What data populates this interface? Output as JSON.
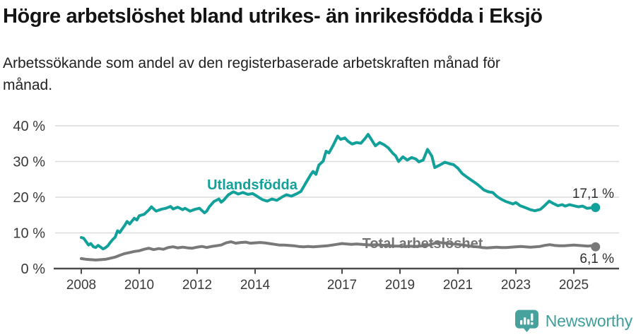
{
  "header": {
    "title": "Högre arbetslöshet bland utrikes- än inrikesfödda i Eksjö",
    "subtitle_lines": [
      "Arbetssökande som andel av den registerbaserade arbetskraften månad för",
      "månad."
    ]
  },
  "footer": {
    "brand": "Newsworthy"
  },
  "colors": {
    "foreign_born": "#12a19a",
    "total": "#797979",
    "grid": "#dcdcdc",
    "axis": "#4a4a4a",
    "tick_label": "#3a3a3a",
    "value_label": "#2e2e2e",
    "logo": "#47a29d",
    "wordmark": "#3f9e99"
  },
  "chart_data": {
    "type": "line",
    "title": "Högre arbetslöshet bland utrikes- än inrikesfödda i Eksjö",
    "subtitle": "Arbetssökande som andel av den registerbaserade arbetskraften månad för månad.",
    "grid": "horizontal",
    "legend_position": "inline-labels",
    "x_axis": {
      "range": [
        2007.1,
        2026.6
      ],
      "ticks": [
        {
          "value": 2008,
          "label": "2008"
        },
        {
          "value": 2010,
          "label": "2010"
        },
        {
          "value": 2012,
          "label": "2012"
        },
        {
          "value": 2014,
          "label": "2014"
        },
        {
          "value": 2017,
          "label": "2017"
        },
        {
          "value": 2019,
          "label": "2019"
        },
        {
          "value": 2021,
          "label": "2021"
        },
        {
          "value": 2023,
          "label": "2023"
        },
        {
          "value": 2025,
          "label": "2025"
        }
      ]
    },
    "y_axis": {
      "range": [
        0,
        40
      ],
      "unit": "%",
      "ticks": [
        {
          "value": 0,
          "label": "0 %"
        },
        {
          "value": 10,
          "label": "10 %"
        },
        {
          "value": 20,
          "label": "20 %"
        },
        {
          "value": 30,
          "label": "30 %"
        },
        {
          "value": 40,
          "label": "40 %"
        }
      ]
    },
    "series": [
      {
        "name": "Utlandsfödda",
        "color_key": "foreign_born",
        "end_label": "17,1 %",
        "end_value": 17.1,
        "points": [
          [
            2008.0,
            8.7
          ],
          [
            2008.08,
            8.5
          ],
          [
            2008.17,
            7.5
          ],
          [
            2008.25,
            6.6
          ],
          [
            2008.33,
            7.0
          ],
          [
            2008.42,
            6.1
          ],
          [
            2008.5,
            5.9
          ],
          [
            2008.58,
            6.5
          ],
          [
            2008.67,
            6.0
          ],
          [
            2008.75,
            5.5
          ],
          [
            2008.83,
            5.8
          ],
          [
            2008.92,
            6.4
          ],
          [
            2009.0,
            7.3
          ],
          [
            2009.08,
            8.1
          ],
          [
            2009.17,
            8.8
          ],
          [
            2009.25,
            10.6
          ],
          [
            2009.33,
            10.1
          ],
          [
            2009.42,
            11.2
          ],
          [
            2009.5,
            12.1
          ],
          [
            2009.58,
            13.2
          ],
          [
            2009.67,
            12.5
          ],
          [
            2009.75,
            13.3
          ],
          [
            2009.83,
            14.1
          ],
          [
            2009.92,
            13.6
          ],
          [
            2010.0,
            14.8
          ],
          [
            2010.17,
            15.2
          ],
          [
            2010.33,
            16.4
          ],
          [
            2010.42,
            17.3
          ],
          [
            2010.5,
            16.7
          ],
          [
            2010.58,
            16.1
          ],
          [
            2010.75,
            16.6
          ],
          [
            2010.92,
            16.9
          ],
          [
            2011.08,
            17.4
          ],
          [
            2011.17,
            16.7
          ],
          [
            2011.33,
            17.2
          ],
          [
            2011.5,
            16.5
          ],
          [
            2011.58,
            16.9
          ],
          [
            2011.75,
            16.1
          ],
          [
            2011.92,
            16.6
          ],
          [
            2012.08,
            16.9
          ],
          [
            2012.25,
            15.6
          ],
          [
            2012.33,
            16.1
          ],
          [
            2012.42,
            17.3
          ],
          [
            2012.58,
            18.8
          ],
          [
            2012.75,
            19.5
          ],
          [
            2012.83,
            18.6
          ],
          [
            2012.92,
            19.2
          ],
          [
            2013.08,
            20.7
          ],
          [
            2013.25,
            21.5
          ],
          [
            2013.42,
            20.9
          ],
          [
            2013.58,
            21.3
          ],
          [
            2013.75,
            20.8
          ],
          [
            2013.92,
            21.0
          ],
          [
            2014.08,
            20.2
          ],
          [
            2014.25,
            19.3
          ],
          [
            2014.42,
            18.9
          ],
          [
            2014.58,
            19.5
          ],
          [
            2014.75,
            19.1
          ],
          [
            2014.92,
            20.0
          ],
          [
            2015.08,
            20.7
          ],
          [
            2015.25,
            20.3
          ],
          [
            2015.42,
            20.9
          ],
          [
            2015.58,
            21.6
          ],
          [
            2015.75,
            24.0
          ],
          [
            2015.92,
            26.3
          ],
          [
            2016.0,
            27.2
          ],
          [
            2016.1,
            26.4
          ],
          [
            2016.2,
            29.0
          ],
          [
            2016.35,
            30.1
          ],
          [
            2016.45,
            32.9
          ],
          [
            2016.55,
            32.4
          ],
          [
            2016.7,
            34.6
          ],
          [
            2016.85,
            37.1
          ],
          [
            2016.95,
            36.2
          ],
          [
            2017.1,
            36.6
          ],
          [
            2017.2,
            35.7
          ],
          [
            2017.35,
            34.9
          ],
          [
            2017.5,
            35.3
          ],
          [
            2017.65,
            35.1
          ],
          [
            2017.8,
            36.5
          ],
          [
            2017.9,
            37.6
          ],
          [
            2018.05,
            35.7
          ],
          [
            2018.15,
            34.4
          ],
          [
            2018.3,
            35.3
          ],
          [
            2018.45,
            34.7
          ],
          [
            2018.6,
            33.8
          ],
          [
            2018.75,
            32.3
          ],
          [
            2018.85,
            31.6
          ],
          [
            2018.95,
            30.0
          ],
          [
            2019.1,
            31.3
          ],
          [
            2019.25,
            30.4
          ],
          [
            2019.4,
            31.1
          ],
          [
            2019.55,
            30.7
          ],
          [
            2019.65,
            29.9
          ],
          [
            2019.8,
            30.4
          ],
          [
            2019.95,
            33.4
          ],
          [
            2020.1,
            31.5
          ],
          [
            2020.2,
            28.3
          ],
          [
            2020.35,
            28.9
          ],
          [
            2020.55,
            29.8
          ],
          [
            2020.7,
            29.4
          ],
          [
            2020.85,
            29.1
          ],
          [
            2021.0,
            28.1
          ],
          [
            2021.15,
            26.6
          ],
          [
            2021.35,
            25.4
          ],
          [
            2021.55,
            24.3
          ],
          [
            2021.7,
            23.4
          ],
          [
            2021.9,
            22.0
          ],
          [
            2022.05,
            21.5
          ],
          [
            2022.2,
            21.3
          ],
          [
            2022.35,
            20.2
          ],
          [
            2022.5,
            19.4
          ],
          [
            2022.65,
            18.8
          ],
          [
            2022.8,
            18.4
          ],
          [
            2022.9,
            18.1
          ],
          [
            2023.0,
            18.5
          ],
          [
            2023.15,
            17.6
          ],
          [
            2023.35,
            17.0
          ],
          [
            2023.5,
            16.5
          ],
          [
            2023.65,
            16.2
          ],
          [
            2023.85,
            16.6
          ],
          [
            2024.0,
            17.7
          ],
          [
            2024.15,
            18.9
          ],
          [
            2024.3,
            18.2
          ],
          [
            2024.45,
            17.6
          ],
          [
            2024.6,
            17.9
          ],
          [
            2024.7,
            17.5
          ],
          [
            2024.85,
            17.9
          ],
          [
            2025.0,
            17.6
          ],
          [
            2025.15,
            17.3
          ],
          [
            2025.3,
            17.5
          ],
          [
            2025.45,
            16.9
          ],
          [
            2025.6,
            17.0
          ],
          [
            2025.75,
            17.1
          ]
        ]
      },
      {
        "name": "Total arbetslöshet",
        "color_key": "total",
        "end_label": "6,1 %",
        "end_value": 6.1,
        "points": [
          [
            2008.0,
            2.8
          ],
          [
            2008.17,
            2.6
          ],
          [
            2008.33,
            2.5
          ],
          [
            2008.5,
            2.4
          ],
          [
            2008.67,
            2.5
          ],
          [
            2008.83,
            2.6
          ],
          [
            2009.0,
            2.9
          ],
          [
            2009.17,
            3.2
          ],
          [
            2009.33,
            3.7
          ],
          [
            2009.5,
            4.2
          ],
          [
            2009.67,
            4.5
          ],
          [
            2009.83,
            4.8
          ],
          [
            2010.0,
            5.0
          ],
          [
            2010.17,
            5.4
          ],
          [
            2010.33,
            5.7
          ],
          [
            2010.5,
            5.3
          ],
          [
            2010.67,
            5.6
          ],
          [
            2010.83,
            5.4
          ],
          [
            2011.0,
            5.9
          ],
          [
            2011.17,
            6.1
          ],
          [
            2011.33,
            5.8
          ],
          [
            2011.5,
            6.0
          ],
          [
            2011.67,
            5.8
          ],
          [
            2011.83,
            5.7
          ],
          [
            2012.0,
            6.0
          ],
          [
            2012.17,
            6.2
          ],
          [
            2012.33,
            5.9
          ],
          [
            2012.5,
            6.2
          ],
          [
            2012.67,
            6.4
          ],
          [
            2012.83,
            6.6
          ],
          [
            2013.0,
            7.2
          ],
          [
            2013.17,
            7.5
          ],
          [
            2013.33,
            7.1
          ],
          [
            2013.5,
            7.3
          ],
          [
            2013.67,
            7.4
          ],
          [
            2013.83,
            7.1
          ],
          [
            2014.0,
            7.2
          ],
          [
            2014.17,
            7.3
          ],
          [
            2014.33,
            7.2
          ],
          [
            2014.5,
            7.0
          ],
          [
            2014.67,
            6.8
          ],
          [
            2014.83,
            6.6
          ],
          [
            2015.0,
            6.6
          ],
          [
            2015.17,
            6.5
          ],
          [
            2015.33,
            6.4
          ],
          [
            2015.5,
            6.2
          ],
          [
            2015.67,
            6.1
          ],
          [
            2015.83,
            6.2
          ],
          [
            2016.0,
            6.1
          ],
          [
            2016.17,
            6.2
          ],
          [
            2016.33,
            6.3
          ],
          [
            2016.5,
            6.4
          ],
          [
            2016.67,
            6.6
          ],
          [
            2016.83,
            6.8
          ],
          [
            2017.0,
            7.0
          ],
          [
            2017.17,
            6.9
          ],
          [
            2017.33,
            6.8
          ],
          [
            2017.5,
            6.9
          ],
          [
            2017.67,
            6.8
          ],
          [
            2017.83,
            6.7
          ],
          [
            2018.0,
            6.6
          ],
          [
            2018.17,
            6.7
          ],
          [
            2018.33,
            6.6
          ],
          [
            2018.5,
            6.5
          ],
          [
            2018.67,
            6.4
          ],
          [
            2018.83,
            6.3
          ],
          [
            2019.0,
            6.3
          ],
          [
            2019.17,
            6.2
          ],
          [
            2019.33,
            6.3
          ],
          [
            2019.5,
            6.2
          ],
          [
            2019.67,
            6.3
          ],
          [
            2019.83,
            6.4
          ],
          [
            2020.0,
            6.6
          ],
          [
            2020.17,
            7.0
          ],
          [
            2020.33,
            7.3
          ],
          [
            2020.5,
            7.2
          ],
          [
            2020.67,
            7.0
          ],
          [
            2020.83,
            6.9
          ],
          [
            2021.0,
            6.8
          ],
          [
            2021.17,
            6.6
          ],
          [
            2021.33,
            6.4
          ],
          [
            2021.5,
            6.2
          ],
          [
            2021.67,
            6.1
          ],
          [
            2021.83,
            5.9
          ],
          [
            2022.0,
            5.8
          ],
          [
            2022.17,
            5.9
          ],
          [
            2022.33,
            6.0
          ],
          [
            2022.5,
            5.9
          ],
          [
            2022.67,
            5.9
          ],
          [
            2022.83,
            6.0
          ],
          [
            2023.0,
            6.1
          ],
          [
            2023.17,
            6.2
          ],
          [
            2023.33,
            6.1
          ],
          [
            2023.5,
            6.0
          ],
          [
            2023.67,
            6.1
          ],
          [
            2023.83,
            6.2
          ],
          [
            2024.0,
            6.5
          ],
          [
            2024.17,
            6.7
          ],
          [
            2024.33,
            6.5
          ],
          [
            2024.5,
            6.4
          ],
          [
            2024.67,
            6.4
          ],
          [
            2024.83,
            6.5
          ],
          [
            2025.0,
            6.6
          ],
          [
            2025.17,
            6.5
          ],
          [
            2025.33,
            6.4
          ],
          [
            2025.5,
            6.3
          ],
          [
            2025.6,
            6.4
          ],
          [
            2025.75,
            6.1
          ]
        ]
      }
    ]
  }
}
